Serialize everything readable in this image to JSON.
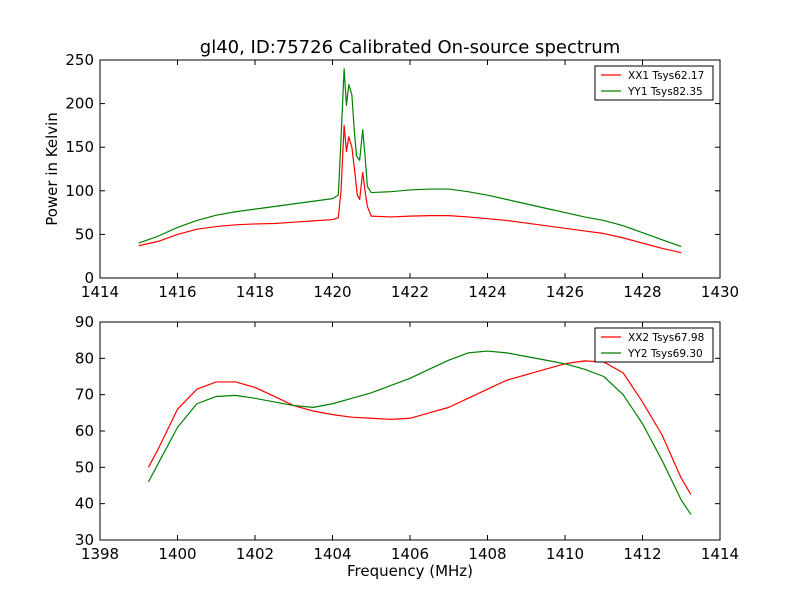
{
  "figure": {
    "title": "gl40, ID:75726 Calibrated On-source spectrum",
    "colors": {
      "red": "#ff0000",
      "green": "#008000",
      "axes": "#000000",
      "background": "#ffffff"
    }
  },
  "chart_data": [
    {
      "type": "line",
      "title": "gl40, ID:75726 Calibrated On-source spectrum",
      "xlabel": "",
      "ylabel": "Power in Kelvin",
      "xlim": [
        1414,
        1430
      ],
      "ylim": [
        0,
        250
      ],
      "xticks": [
        "1414",
        "1416",
        "1418",
        "1420",
        "1422",
        "1424",
        "1426",
        "1428",
        "1430"
      ],
      "yticks": [
        "0",
        "50",
        "100",
        "150",
        "200",
        "250"
      ],
      "grid": false,
      "legend_position": "top-right",
      "series": [
        {
          "name": "XX1 Tsys62.17",
          "color": "#ff0000",
          "points": [
            [
              1415.0,
              37
            ],
            [
              1415.5,
              42
            ],
            [
              1416.0,
              50
            ],
            [
              1416.5,
              56
            ],
            [
              1417.0,
              59
            ],
            [
              1417.5,
              61
            ],
            [
              1418.0,
              62
            ],
            [
              1418.5,
              62.5
            ],
            [
              1419.0,
              64
            ],
            [
              1419.5,
              65.5
            ],
            [
              1420.0,
              67
            ],
            [
              1420.15,
              69
            ],
            [
              1420.22,
              100
            ],
            [
              1420.3,
              175
            ],
            [
              1420.36,
              145
            ],
            [
              1420.42,
              162
            ],
            [
              1420.5,
              150
            ],
            [
              1420.58,
              120
            ],
            [
              1420.64,
              95
            ],
            [
              1420.7,
              90
            ],
            [
              1420.78,
              121
            ],
            [
              1420.84,
              100
            ],
            [
              1420.9,
              82
            ],
            [
              1421.0,
              71
            ],
            [
              1421.5,
              70
            ],
            [
              1422.0,
              71
            ],
            [
              1422.5,
              71.5
            ],
            [
              1423.0,
              71.5
            ],
            [
              1423.5,
              70
            ],
            [
              1424.0,
              68
            ],
            [
              1424.5,
              66
            ],
            [
              1425.0,
              63
            ],
            [
              1425.5,
              60
            ],
            [
              1426.0,
              57
            ],
            [
              1426.5,
              54
            ],
            [
              1427.0,
              51
            ],
            [
              1427.5,
              46
            ],
            [
              1428.0,
              40
            ],
            [
              1428.5,
              34
            ],
            [
              1429.0,
              29
            ]
          ]
        },
        {
          "name": "YY1 Tsys82.35",
          "color": "#008000",
          "points": [
            [
              1415.0,
              40
            ],
            [
              1415.5,
              48
            ],
            [
              1416.0,
              58
            ],
            [
              1416.5,
              66
            ],
            [
              1417.0,
              72
            ],
            [
              1417.5,
              76
            ],
            [
              1418.0,
              79
            ],
            [
              1418.5,
              82
            ],
            [
              1419.0,
              85
            ],
            [
              1419.5,
              88
            ],
            [
              1420.0,
              91
            ],
            [
              1420.15,
              95
            ],
            [
              1420.22,
              160
            ],
            [
              1420.3,
              240
            ],
            [
              1420.36,
              198
            ],
            [
              1420.42,
              222
            ],
            [
              1420.5,
              210
            ],
            [
              1420.56,
              170
            ],
            [
              1420.62,
              140
            ],
            [
              1420.7,
              135
            ],
            [
              1420.78,
              170
            ],
            [
              1420.84,
              140
            ],
            [
              1420.9,
              105
            ],
            [
              1421.0,
              98
            ],
            [
              1421.5,
              99
            ],
            [
              1422.0,
              101
            ],
            [
              1422.5,
              102
            ],
            [
              1423.0,
              102
            ],
            [
              1423.5,
              99
            ],
            [
              1424.0,
              95
            ],
            [
              1424.5,
              90
            ],
            [
              1425.0,
              85
            ],
            [
              1425.5,
              80
            ],
            [
              1426.0,
              75
            ],
            [
              1426.5,
              70
            ],
            [
              1427.0,
              66
            ],
            [
              1427.5,
              60
            ],
            [
              1428.0,
              52
            ],
            [
              1428.5,
              44
            ],
            [
              1429.0,
              36
            ]
          ]
        }
      ]
    },
    {
      "type": "line",
      "title": "",
      "xlabel": "Frequency (MHz)",
      "ylabel": "",
      "xlim": [
        1398,
        1414
      ],
      "ylim": [
        30,
        90
      ],
      "xticks": [
        "1398",
        "1400",
        "1402",
        "1404",
        "1406",
        "1408",
        "1410",
        "1412",
        "1414"
      ],
      "yticks": [
        "30",
        "40",
        "50",
        "60",
        "70",
        "80",
        "90"
      ],
      "grid": false,
      "legend_position": "top-right",
      "series": [
        {
          "name": "XX2 Tsys67.98",
          "color": "#ff0000",
          "points": [
            [
              1399.25,
              50
            ],
            [
              1399.5,
              55
            ],
            [
              1400.0,
              66
            ],
            [
              1400.5,
              71.5
            ],
            [
              1401.0,
              73.5
            ],
            [
              1401.5,
              73.5
            ],
            [
              1402.0,
              72
            ],
            [
              1402.5,
              69.5
            ],
            [
              1403.0,
              67
            ],
            [
              1403.5,
              65.5
            ],
            [
              1404.0,
              64.5
            ],
            [
              1404.5,
              63.8
            ],
            [
              1405.0,
              63.5
            ],
            [
              1405.5,
              63.2
            ],
            [
              1406.0,
              63.5
            ],
            [
              1406.5,
              65
            ],
            [
              1407.0,
              66.5
            ],
            [
              1407.5,
              69
            ],
            [
              1408.0,
              71.5
            ],
            [
              1408.5,
              74
            ],
            [
              1409.0,
              75.5
            ],
            [
              1409.5,
              77
            ],
            [
              1410.0,
              78.5
            ],
            [
              1410.5,
              79.3
            ],
            [
              1411.0,
              79
            ],
            [
              1411.5,
              76
            ],
            [
              1412.0,
              68
            ],
            [
              1412.5,
              59
            ],
            [
              1413.0,
              47
            ],
            [
              1413.25,
              42.5
            ]
          ]
        },
        {
          "name": "YY2 Tsys69.30",
          "color": "#008000",
          "points": [
            [
              1399.25,
              46
            ],
            [
              1399.5,
              51
            ],
            [
              1400.0,
              61
            ],
            [
              1400.5,
              67.5
            ],
            [
              1401.0,
              69.5
            ],
            [
              1401.5,
              69.8
            ],
            [
              1402.0,
              69
            ],
            [
              1402.5,
              68
            ],
            [
              1403.0,
              67
            ],
            [
              1403.5,
              66.5
            ],
            [
              1404.0,
              67.5
            ],
            [
              1404.5,
              69
            ],
            [
              1405.0,
              70.5
            ],
            [
              1405.5,
              72.5
            ],
            [
              1406.0,
              74.5
            ],
            [
              1406.5,
              77
            ],
            [
              1407.0,
              79.5
            ],
            [
              1407.5,
              81.5
            ],
            [
              1408.0,
              82
            ],
            [
              1408.5,
              81.5
            ],
            [
              1409.0,
              80.5
            ],
            [
              1409.5,
              79.5
            ],
            [
              1410.0,
              78.5
            ],
            [
              1410.5,
              77
            ],
            [
              1411.0,
              75
            ],
            [
              1411.5,
              70
            ],
            [
              1412.0,
              62
            ],
            [
              1412.5,
              52
            ],
            [
              1413.0,
              41
            ],
            [
              1413.25,
              37
            ]
          ]
        }
      ]
    }
  ]
}
